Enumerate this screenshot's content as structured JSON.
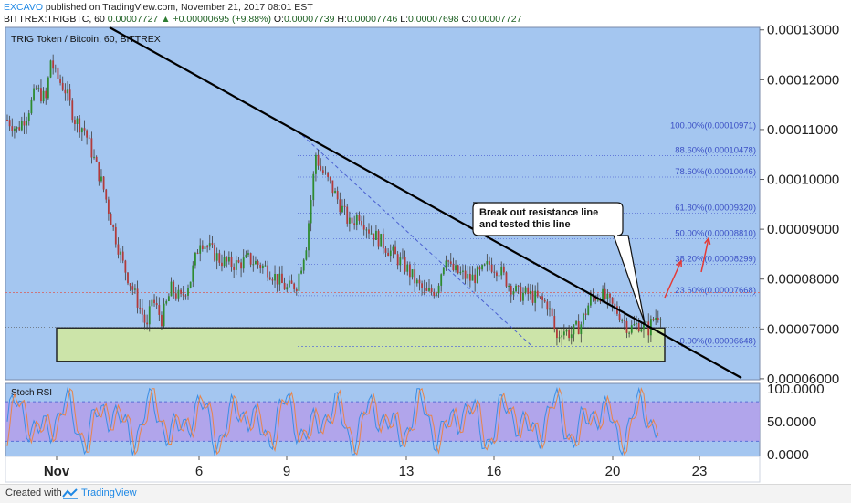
{
  "header": {
    "author": "EXCAVO",
    "published": "published on TradingView.com, November 21, 2017 08:01 EST",
    "symbol": "BITTREX:TRIGBTC, 60",
    "last": "0.00007727",
    "change": "+0.00000695 (+9.88%)",
    "o_label": "O:",
    "o": "0.00007739",
    "h_label": "H:",
    "h": "0.00007746",
    "l_label": "L:",
    "l": "0.00007698",
    "c_label": "C:",
    "c": "0.00007727"
  },
  "pane_title": "TRIG Token / Bitcoin, 60, BITTREX",
  "annotation": "Break out resistance line\nand tested this line",
  "stoch_label": "Stoch RSI",
  "footer": {
    "created": "Created with",
    "brand": "TradingView"
  },
  "colors": {
    "background": "#a4c6f0",
    "stoch_band": "#b49fea",
    "support_box": "#cfe6a6",
    "bull": "#2e8b2e",
    "bear": "#b23a3a",
    "fib_line": "#5a6fd6",
    "fib_text": "#3b4fc4",
    "trendline": "#000000",
    "arrow": "#e53935"
  },
  "chart_data": [
    {
      "type": "candlestick",
      "title": "TRIG Token / Bitcoin, 60, BITTREX",
      "ylim": [
        5.98e-05,
        0.0001305
      ],
      "y_ticks": [
        "0.00013000",
        "0.00012000",
        "0.00011000",
        "0.00010000",
        "0.00009000",
        "0.00008000",
        "0.00007000",
        "0.00006000"
      ],
      "x_ticks": [
        "Nov",
        "6",
        "9",
        "13",
        "16",
        "20",
        "23"
      ],
      "price_path": [
        [
          0,
          0.000112
        ],
        [
          4,
          0.00011
        ],
        [
          8,
          0.000113
        ],
        [
          12,
          0.000118
        ],
        [
          16,
          0.000116
        ],
        [
          18,
          0.000124
        ],
        [
          20,
          0.000121
        ],
        [
          24,
          0.000118
        ],
        [
          28,
          0.000112
        ],
        [
          32,
          0.00011
        ],
        [
          36,
          0.000104
        ],
        [
          40,
          9.8e-05
        ],
        [
          44,
          9e-05
        ],
        [
          48,
          8.3e-05
        ],
        [
          52,
          7.8e-05
        ],
        [
          56,
          7.3e-05
        ],
        [
          58,
          7e-05
        ],
        [
          60,
          7.6e-05
        ],
        [
          64,
          7.2e-05
        ],
        [
          68,
          7.8e-05
        ],
        [
          72,
          7.6e-05
        ],
        [
          76,
          8e-05
        ],
        [
          80,
          8.8e-05
        ],
        [
          84,
          8.6e-05
        ],
        [
          88,
          8.4e-05
        ],
        [
          92,
          8.3e-05
        ],
        [
          96,
          8.3e-05
        ],
        [
          100,
          8.4e-05
        ],
        [
          104,
          8.3e-05
        ],
        [
          108,
          8.2e-05
        ],
        [
          112,
          8e-05
        ],
        [
          116,
          7.8e-05
        ],
        [
          120,
          7.9e-05
        ],
        [
          124,
          8.7e-05
        ],
        [
          126,
          9.6e-05
        ],
        [
          128,
          0.000105
        ],
        [
          130,
          0.000102
        ],
        [
          134,
          9.9e-05
        ],
        [
          138,
          9.5e-05
        ],
        [
          142,
          9.1e-05
        ],
        [
          146,
          9.3e-05
        ],
        [
          150,
          9e-05
        ],
        [
          154,
          8.8e-05
        ],
        [
          158,
          8.6e-05
        ],
        [
          162,
          8.4e-05
        ],
        [
          166,
          8.2e-05
        ],
        [
          170,
          7.9e-05
        ],
        [
          174,
          7.7e-05
        ],
        [
          178,
          7.8e-05
        ],
        [
          182,
          8.5e-05
        ],
        [
          184,
          8.2e-05
        ],
        [
          188,
          8.1e-05
        ],
        [
          192,
          8e-05
        ],
        [
          196,
          8.1e-05
        ],
        [
          200,
          8.3e-05
        ],
        [
          204,
          8.2e-05
        ],
        [
          208,
          7.9e-05
        ],
        [
          212,
          7.7e-05
        ],
        [
          216,
          7.7e-05
        ],
        [
          220,
          7.6e-05
        ],
        [
          224,
          7.5e-05
        ],
        [
          226,
          7.2e-05
        ],
        [
          228,
          6.8e-05
        ],
        [
          230,
          7e-05
        ],
        [
          234,
          6.9e-05
        ],
        [
          238,
          7.1e-05
        ],
        [
          242,
          7.6e-05
        ],
        [
          246,
          7.7e-05
        ],
        [
          250,
          7.5e-05
        ],
        [
          254,
          7.3e-05
        ],
        [
          258,
          7e-05
        ],
        [
          262,
          7.1e-05
        ],
        [
          266,
          7e-05
        ],
        [
          268,
          7.2e-05
        ],
        [
          272,
          7.4e-05
        ],
        [
          274,
          7.7e-05
        ]
      ],
      "fib_levels": [
        {
          "label": "100.00%(0.00010971)",
          "value": 0.00010971
        },
        {
          "label": "88.60%(0.00010478)",
          "value": 0.00010478
        },
        {
          "label": "78.60%(0.00010046)",
          "value": 0.00010046
        },
        {
          "label": "61.80%(0.00009320)",
          "value": 9.32e-05
        },
        {
          "label": "50.00%(0.00008810)",
          "value": 8.81e-05
        },
        {
          "label": "38.20%(0.00008299)",
          "value": 8.299e-05
        },
        {
          "label": "23.60%(0.00007668)",
          "value": 7.668e-05
        },
        {
          "label": "0.00%(0.00006648)",
          "value": 6.648e-05
        }
      ],
      "support_zone": [
        6.35e-05,
        7.02e-05
      ]
    },
    {
      "type": "line",
      "title": "Stoch RSI",
      "ylim": [
        -3,
        108
      ],
      "y_ticks": [
        "100.0000",
        "50.0000",
        "0.0000"
      ],
      "band": [
        20,
        80
      ],
      "series": [
        {
          "color": "#3a8ee6"
        },
        {
          "color": "#e8844a"
        }
      ]
    }
  ]
}
